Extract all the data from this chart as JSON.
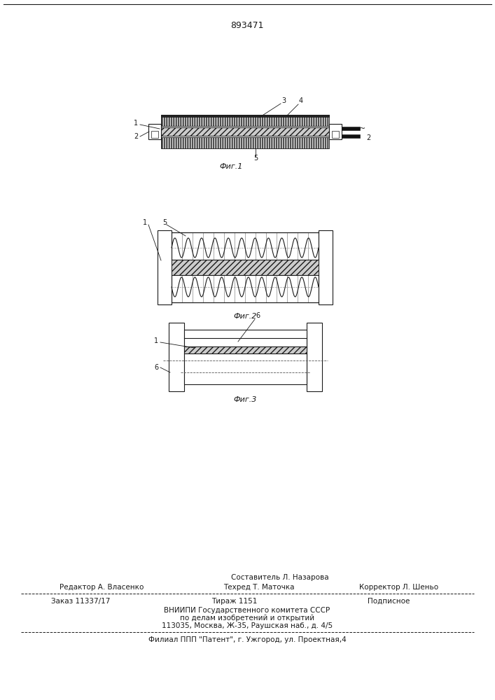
{
  "patent_number": "893471",
  "background_color": "#ffffff",
  "line_color": "#1a1a1a",
  "fig1_caption": "Фиг.1",
  "fig2_caption": "Фиг.2",
  "fig3_caption": "Фиг.3",
  "footer_col1_row1": "Редактор А. Власенко",
  "footer_col2_row1": "Техред Т. Маточка",
  "footer_col3_row1": "Корректор Л. Шеньо",
  "footer_col1_row2": "Заказ 11337/17",
  "footer_col2_row2": "Тираж 1151",
  "footer_col3_row2": "Подписное",
  "footer_center1": "Составитель Л. Назарова",
  "footer_vniiipi": "ВНИИПИ Государственного комитета СССР",
  "footer_po_delam": "по делам изобретений и открытий",
  "footer_address": "113035, Москва, Ж-35, Раушская наб., д. 4/5",
  "footer_filial": "Филиал ППП \"Патент\", г. Ужгород, ул. Проектная,4"
}
